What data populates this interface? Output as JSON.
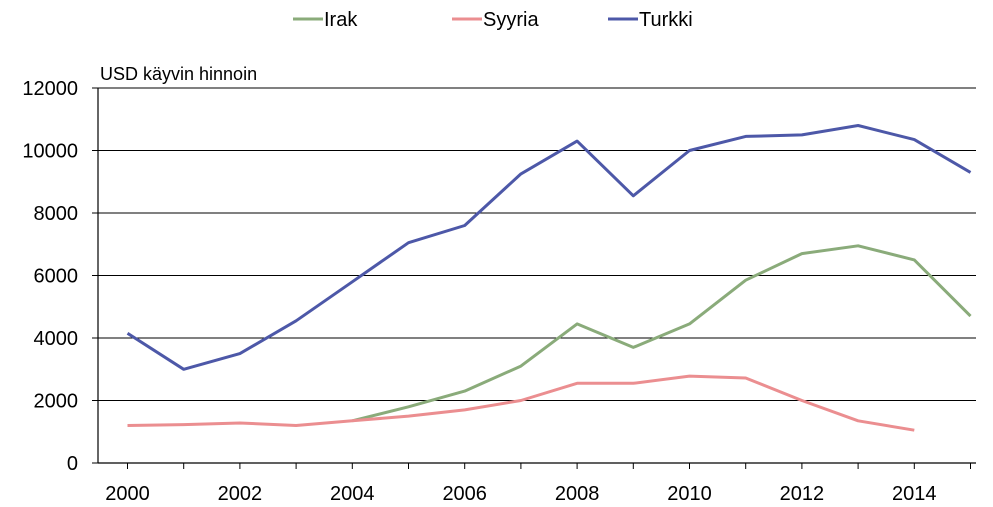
{
  "chart_data": {
    "type": "line",
    "ylabel": "USD käyvin hinnoin",
    "ylim": [
      0,
      12000
    ],
    "xlim": [
      2000,
      2015
    ],
    "y_ticks": [
      "0",
      "2000",
      "4000",
      "6000",
      "8000",
      "10000",
      "12000"
    ],
    "x_ticks": [
      "2000",
      "2002",
      "2004",
      "2006",
      "2008",
      "2010",
      "2012",
      "2014"
    ],
    "grid": "horizontal",
    "legend_position": "top",
    "series": [
      {
        "name": "Irak",
        "color": "#8aab7a",
        "points": [
          [
            2004,
            1350
          ],
          [
            2005,
            1800
          ],
          [
            2006,
            2300
          ],
          [
            2007,
            3100
          ],
          [
            2008,
            4450
          ],
          [
            2009,
            3700
          ],
          [
            2010,
            4450
          ],
          [
            2011,
            5850
          ],
          [
            2012,
            6700
          ],
          [
            2013,
            6950
          ],
          [
            2014,
            6500
          ],
          [
            2015,
            4700
          ]
        ]
      },
      {
        "name": "Syyria",
        "color": "#eb8e90",
        "points": [
          [
            2000,
            1200
          ],
          [
            2001,
            1230
          ],
          [
            2002,
            1280
          ],
          [
            2003,
            1200
          ],
          [
            2004,
            1350
          ],
          [
            2005,
            1500
          ],
          [
            2006,
            1700
          ],
          [
            2007,
            2000
          ],
          [
            2008,
            2550
          ],
          [
            2009,
            2550
          ],
          [
            2010,
            2780
          ],
          [
            2011,
            2720
          ],
          [
            2012,
            2000
          ],
          [
            2013,
            1350
          ],
          [
            2014,
            1050
          ]
        ]
      },
      {
        "name": "Turkki",
        "color": "#4d58a8",
        "points": [
          [
            2000,
            4150
          ],
          [
            2001,
            3000
          ],
          [
            2002,
            3500
          ],
          [
            2003,
            4550
          ],
          [
            2004,
            5800
          ],
          [
            2005,
            7050
          ],
          [
            2006,
            7600
          ],
          [
            2007,
            9250
          ],
          [
            2008,
            10300
          ],
          [
            2009,
            8550
          ],
          [
            2010,
            10000
          ],
          [
            2011,
            10450
          ],
          [
            2012,
            10500
          ],
          [
            2013,
            10800
          ],
          [
            2014,
            10350
          ],
          [
            2015,
            9300
          ]
        ]
      }
    ]
  }
}
